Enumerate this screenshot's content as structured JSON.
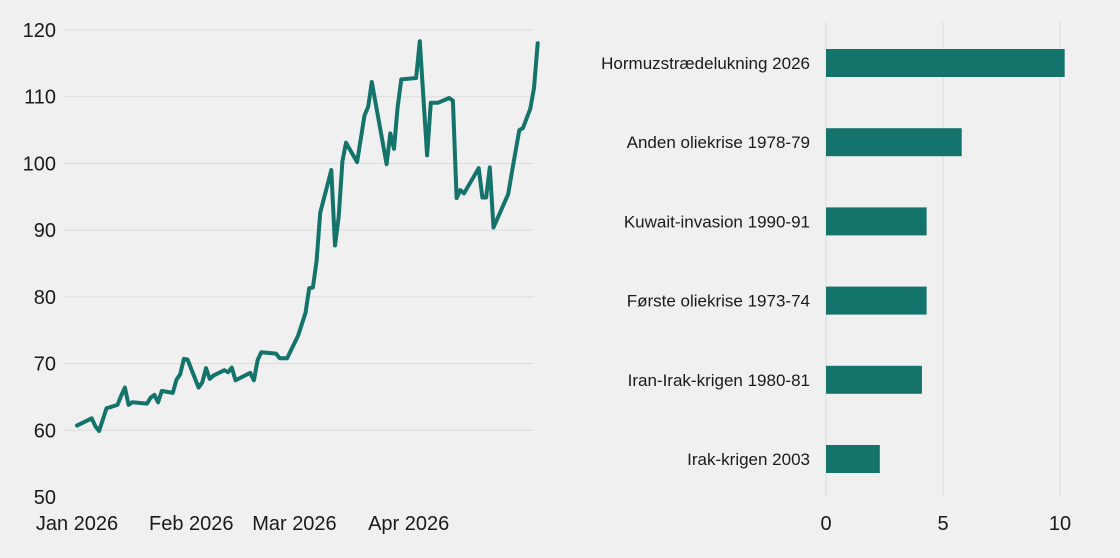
{
  "colors": {
    "background": "#f0f0f0",
    "series": "#14736b",
    "grid": "#dcdcdc",
    "text": "#1a1a1a"
  },
  "chart_data": [
    {
      "type": "line",
      "title": "",
      "xlabel": "",
      "ylabel": "",
      "grid": "horizontal",
      "legend": "none",
      "ylim": [
        50,
        120
      ],
      "yticks": [
        50,
        60,
        70,
        80,
        90,
        100,
        110,
        120
      ],
      "xlim": [
        "2026-01-01",
        "2026-05-05"
      ],
      "xticks": [
        {
          "date": "2026-01-01",
          "label": "Jan 2026"
        },
        {
          "date": "2026-02-01",
          "label": "Feb 2026"
        },
        {
          "date": "2026-03-01",
          "label": "Mar 2026"
        },
        {
          "date": "2026-04-01",
          "label": "Apr 2026"
        }
      ],
      "series": [
        {
          "points": [
            [
              "2026-01-01",
              60.7
            ],
            [
              "2026-01-05",
              61.8
            ],
            [
              "2026-01-06",
              60.6
            ],
            [
              "2026-01-07",
              59.9
            ],
            [
              "2026-01-09",
              63.3
            ],
            [
              "2026-01-12",
              63.8
            ],
            [
              "2026-01-13",
              65.2
            ],
            [
              "2026-01-14",
              66.4
            ],
            [
              "2026-01-15",
              63.8
            ],
            [
              "2026-01-16",
              64.2
            ],
            [
              "2026-01-20",
              64.0
            ],
            [
              "2026-01-21",
              64.9
            ],
            [
              "2026-01-22",
              65.3
            ],
            [
              "2026-01-23",
              64.2
            ],
            [
              "2026-01-24",
              65.9
            ],
            [
              "2026-01-27",
              65.6
            ],
            [
              "2026-01-28",
              67.6
            ],
            [
              "2026-01-29",
              68.4
            ],
            [
              "2026-01-30",
              70.7
            ],
            [
              "2026-01-31",
              70.6
            ],
            [
              "2026-02-03",
              66.4
            ],
            [
              "2026-02-04",
              67.2
            ],
            [
              "2026-02-05",
              69.3
            ],
            [
              "2026-02-06",
              67.7
            ],
            [
              "2026-02-07",
              68.2
            ],
            [
              "2026-02-10",
              69.0
            ],
            [
              "2026-02-11",
              68.7
            ],
            [
              "2026-02-12",
              69.4
            ],
            [
              "2026-02-13",
              67.5
            ],
            [
              "2026-02-17",
              68.6
            ],
            [
              "2026-02-18",
              67.5
            ],
            [
              "2026-02-19",
              70.5
            ],
            [
              "2026-02-20",
              71.7
            ],
            [
              "2026-02-24",
              71.5
            ],
            [
              "2026-02-25",
              70.8
            ],
            [
              "2026-02-27",
              70.8
            ],
            [
              "2026-03-02",
              74.2
            ],
            [
              "2026-03-04",
              77.6
            ],
            [
              "2026-03-05",
              81.3
            ],
            [
              "2026-03-06",
              81.4
            ],
            [
              "2026-03-07",
              85.4
            ],
            [
              "2026-03-08",
              92.6
            ],
            [
              "2026-03-11",
              99.0
            ],
            [
              "2026-03-12",
              87.7
            ],
            [
              "2026-03-13",
              92.0
            ],
            [
              "2026-03-14",
              100.3
            ],
            [
              "2026-03-15",
              103.1
            ],
            [
              "2026-03-18",
              100.2
            ],
            [
              "2026-03-20",
              107.2
            ],
            [
              "2026-03-21",
              108.5
            ],
            [
              "2026-03-22",
              112.2
            ],
            [
              "2026-03-26",
              99.9
            ],
            [
              "2026-03-27",
              104.5
            ],
            [
              "2026-03-28",
              102.2
            ],
            [
              "2026-03-29",
              108.4
            ],
            [
              "2026-03-30",
              112.6
            ],
            [
              "2026-04-03",
              112.8
            ],
            [
              "2026-04-04",
              118.3
            ],
            [
              "2026-04-06",
              101.2
            ],
            [
              "2026-04-07",
              109.1
            ],
            [
              "2026-04-09",
              109.1
            ],
            [
              "2026-04-12",
              109.8
            ],
            [
              "2026-04-13",
              109.4
            ],
            [
              "2026-04-14",
              94.8
            ],
            [
              "2026-04-15",
              96.0
            ],
            [
              "2026-04-16",
              95.5
            ],
            [
              "2026-04-20",
              99.3
            ],
            [
              "2026-04-21",
              94.9
            ],
            [
              "2026-04-22",
              94.9
            ],
            [
              "2026-04-23",
              99.4
            ],
            [
              "2026-04-24",
              90.4
            ],
            [
              "2026-04-28",
              95.4
            ],
            [
              "2026-04-29",
              98.7
            ],
            [
              "2026-05-01",
              105.0
            ],
            [
              "2026-05-02",
              105.3
            ],
            [
              "2026-05-04",
              108.2
            ],
            [
              "2026-05-05",
              111.3
            ],
            [
              "2026-05-06",
              118.0
            ]
          ]
        }
      ]
    },
    {
      "type": "bar",
      "orientation": "horizontal",
      "title": "",
      "xlabel": "",
      "ylabel": "",
      "grid": "vertical",
      "legend": "none",
      "xlim": [
        0,
        10.5
      ],
      "xticks": [
        0,
        5,
        10
      ],
      "categories": [
        "Hormuzstrædelukning 2026",
        "Anden oliekrise 1978-79",
        "Kuwait-invasion 1990-91",
        "Første oliekrise 1973-74",
        "Iran-Irak-krigen 1980-81",
        "Irak-krigen 2003"
      ],
      "values": [
        10.2,
        5.8,
        4.3,
        4.3,
        4.1,
        2.3
      ]
    }
  ]
}
